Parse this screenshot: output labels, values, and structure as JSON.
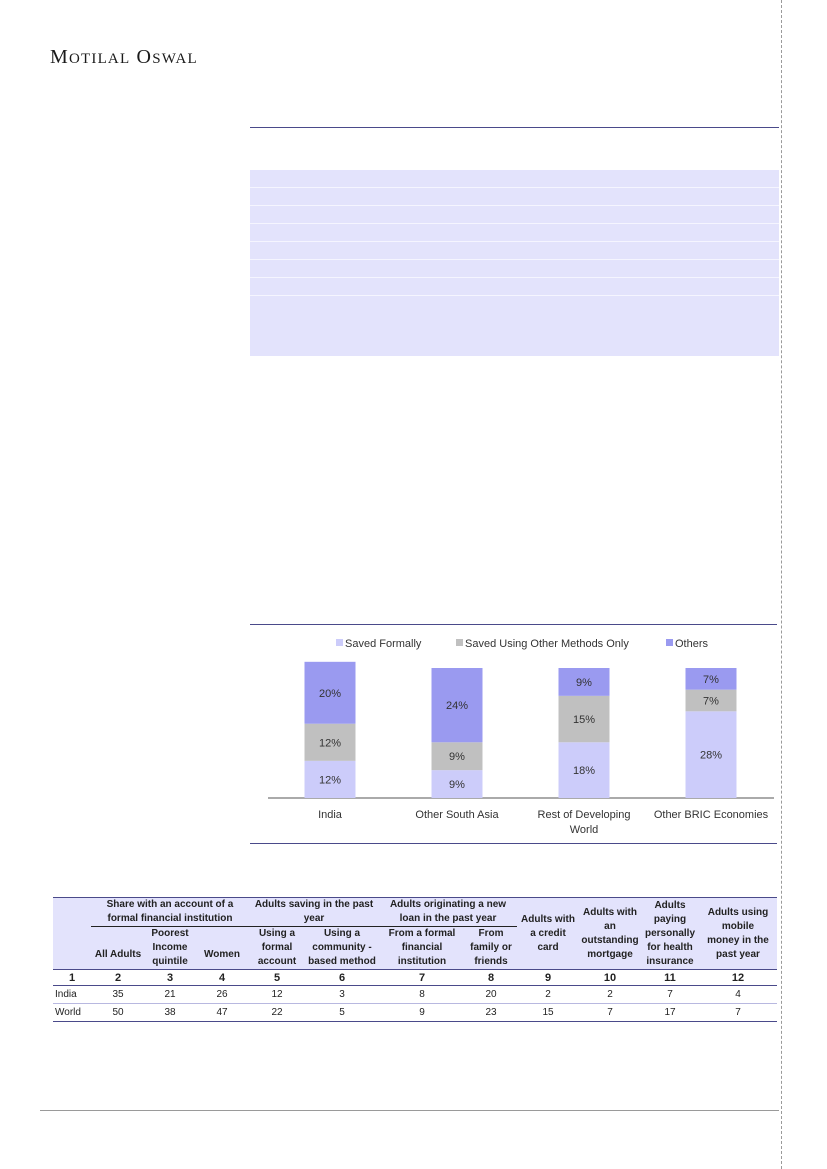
{
  "brand": {
    "name_first_cap": "M",
    "name_first_rest": "OTILAL",
    "name_second_cap": "O",
    "name_second_rest": "SWAL"
  },
  "chart_data": {
    "type": "bar",
    "stacked": true,
    "categories": [
      "India",
      "Other South Asia",
      "Rest of Developing World",
      "Other BRIC Economies"
    ],
    "category_lines": [
      [
        "India"
      ],
      [
        "Other South Asia"
      ],
      [
        "Rest of Developing",
        "World"
      ],
      [
        "Other BRIC Economies"
      ]
    ],
    "series": [
      {
        "name": "Saved Formally",
        "values": [
          12,
          9,
          18,
          28
        ],
        "labels": [
          "12%",
          "9%",
          "18%",
          "28%"
        ],
        "color": "#ccccfa"
      },
      {
        "name": "Saved Using Other Methods Only",
        "values": [
          12,
          9,
          15,
          7
        ],
        "labels": [
          "12%",
          "9%",
          "15%",
          "7%"
        ],
        "color": "#c0c0c0"
      },
      {
        "name": "Others",
        "values": [
          20,
          24,
          9,
          7
        ],
        "labels": [
          "20%",
          "24%",
          "9%",
          "7%"
        ],
        "color": "#9a9af0"
      }
    ],
    "legend_position": "top-center",
    "grid": false,
    "ylim": [
      0,
      42
    ]
  },
  "table": {
    "groups": [
      {
        "label_lines": [
          "Share with an account of a",
          "formal financial institution"
        ],
        "span": 3
      },
      {
        "label_lines": [
          "Adults saving in the past",
          "year"
        ],
        "span": 2
      },
      {
        "label_lines": [
          "Adults originating a new",
          "loan in the past year"
        ],
        "span": 2
      }
    ],
    "single_headers": [
      [
        "Adults with",
        "a credit",
        "card"
      ],
      [
        "Adults with",
        "an",
        "outstanding",
        "mortgage"
      ],
      [
        "Adults",
        "paying",
        "personally",
        "for health",
        "insurance"
      ],
      [
        "Adults using",
        "mobile",
        "money in the",
        "past year"
      ]
    ],
    "sub_headers": [
      [
        "All Adults"
      ],
      [
        "Poorest",
        "Income",
        "quintile"
      ],
      [
        "Women"
      ],
      [
        "Using a",
        "formal",
        "account"
      ],
      [
        "Using a",
        "community -",
        "based method"
      ],
      [
        "From a formal",
        "financial",
        "institution"
      ],
      [
        "From",
        "family or",
        "friends"
      ]
    ],
    "index_row": [
      "1",
      "2",
      "3",
      "4",
      "5",
      "6",
      "7",
      "8",
      "9",
      "10",
      "11",
      "12"
    ],
    "rows": [
      {
        "name": "India",
        "values": [
          "35",
          "21",
          "26",
          "12",
          "3",
          "8",
          "20",
          "2",
          "2",
          "7",
          "4"
        ]
      },
      {
        "name": "World",
        "values": [
          "50",
          "38",
          "47",
          "22",
          "5",
          "9",
          "23",
          "15",
          "7",
          "17",
          "7"
        ]
      }
    ]
  }
}
